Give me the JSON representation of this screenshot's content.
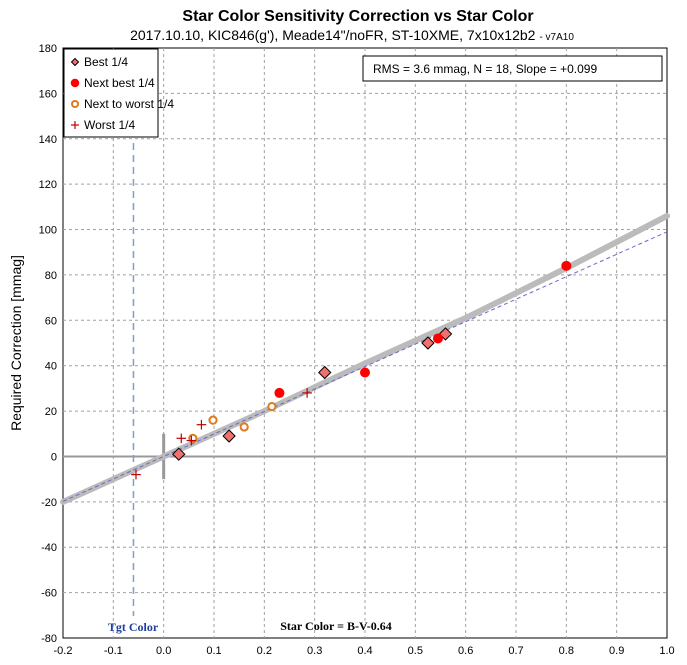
{
  "chart_data": {
    "type": "scatter",
    "title": "Star Color Sensitivity Correction vs Star Color",
    "subtitle": "2017.10.10, KIC846(g'), Meade14\"/noFR, ST-10XME, 7x10x12b2",
    "subtitle_tag": "- v7A10",
    "ylabel": "Required Correction [mmag]",
    "xlim": [
      -0.2,
      1.0
    ],
    "ylim": [
      -80,
      180
    ],
    "xticks": [
      "-0.2",
      "-0.1",
      "0.0",
      "0.1",
      "0.2",
      "0.3",
      "0.4",
      "0.5",
      "0.6",
      "0.7",
      "0.8",
      "0.9",
      "1.0"
    ],
    "yticks": [
      "180",
      "160",
      "140",
      "120",
      "100",
      "80",
      "60",
      "40",
      "20",
      "0",
      "-20",
      "-40",
      "-60",
      "-80"
    ],
    "grid": true,
    "legend_position": "top-left",
    "stats_box": "RMS = 3.6 mmag, N = 18, Slope = +0.099",
    "annotations": {
      "target_color_label": "Tgt Color",
      "target_color_x": -0.06,
      "star_color_label": "Star Color = B-V-0.64"
    },
    "fit_curve": {
      "x": [
        -0.2,
        0.0,
        0.2,
        0.4,
        0.6,
        0.8,
        1.0
      ],
      "y": [
        -20,
        0,
        20,
        41,
        61,
        83,
        106
      ],
      "color": "#bbbbbb"
    },
    "linear_fit": {
      "x": [
        -0.2,
        1.0
      ],
      "y": [
        -19.8,
        99
      ],
      "color": "#6a6ac8"
    },
    "series": [
      {
        "name": "Best 1/4",
        "marker": "diamond",
        "color": "#f07070",
        "edge": "#000000",
        "x": [
          0.03,
          0.13,
          0.32,
          0.525,
          0.56
        ],
        "y": [
          1,
          9,
          37,
          50,
          54
        ]
      },
      {
        "name": "Next best 1/4",
        "marker": "filled-circle",
        "color": "#ff0000",
        "edge": "#ff0000",
        "x": [
          0.23,
          0.4,
          0.545,
          0.8
        ],
        "y": [
          28,
          37,
          52,
          84
        ]
      },
      {
        "name": "Next to worst 1/4",
        "marker": "open-circle",
        "color": "#ffffff",
        "edge": "#e07a1e",
        "x": [
          0.058,
          0.098,
          0.16,
          0.215
        ],
        "y": [
          8,
          16,
          13,
          22
        ]
      },
      {
        "name": "Worst 1/4",
        "marker": "plus",
        "color": "#c00000",
        "edge": "#c00000",
        "x": [
          -0.055,
          0.035,
          0.055,
          0.075,
          0.285
        ],
        "y": [
          -8,
          8,
          7,
          14,
          28
        ]
      }
    ]
  }
}
